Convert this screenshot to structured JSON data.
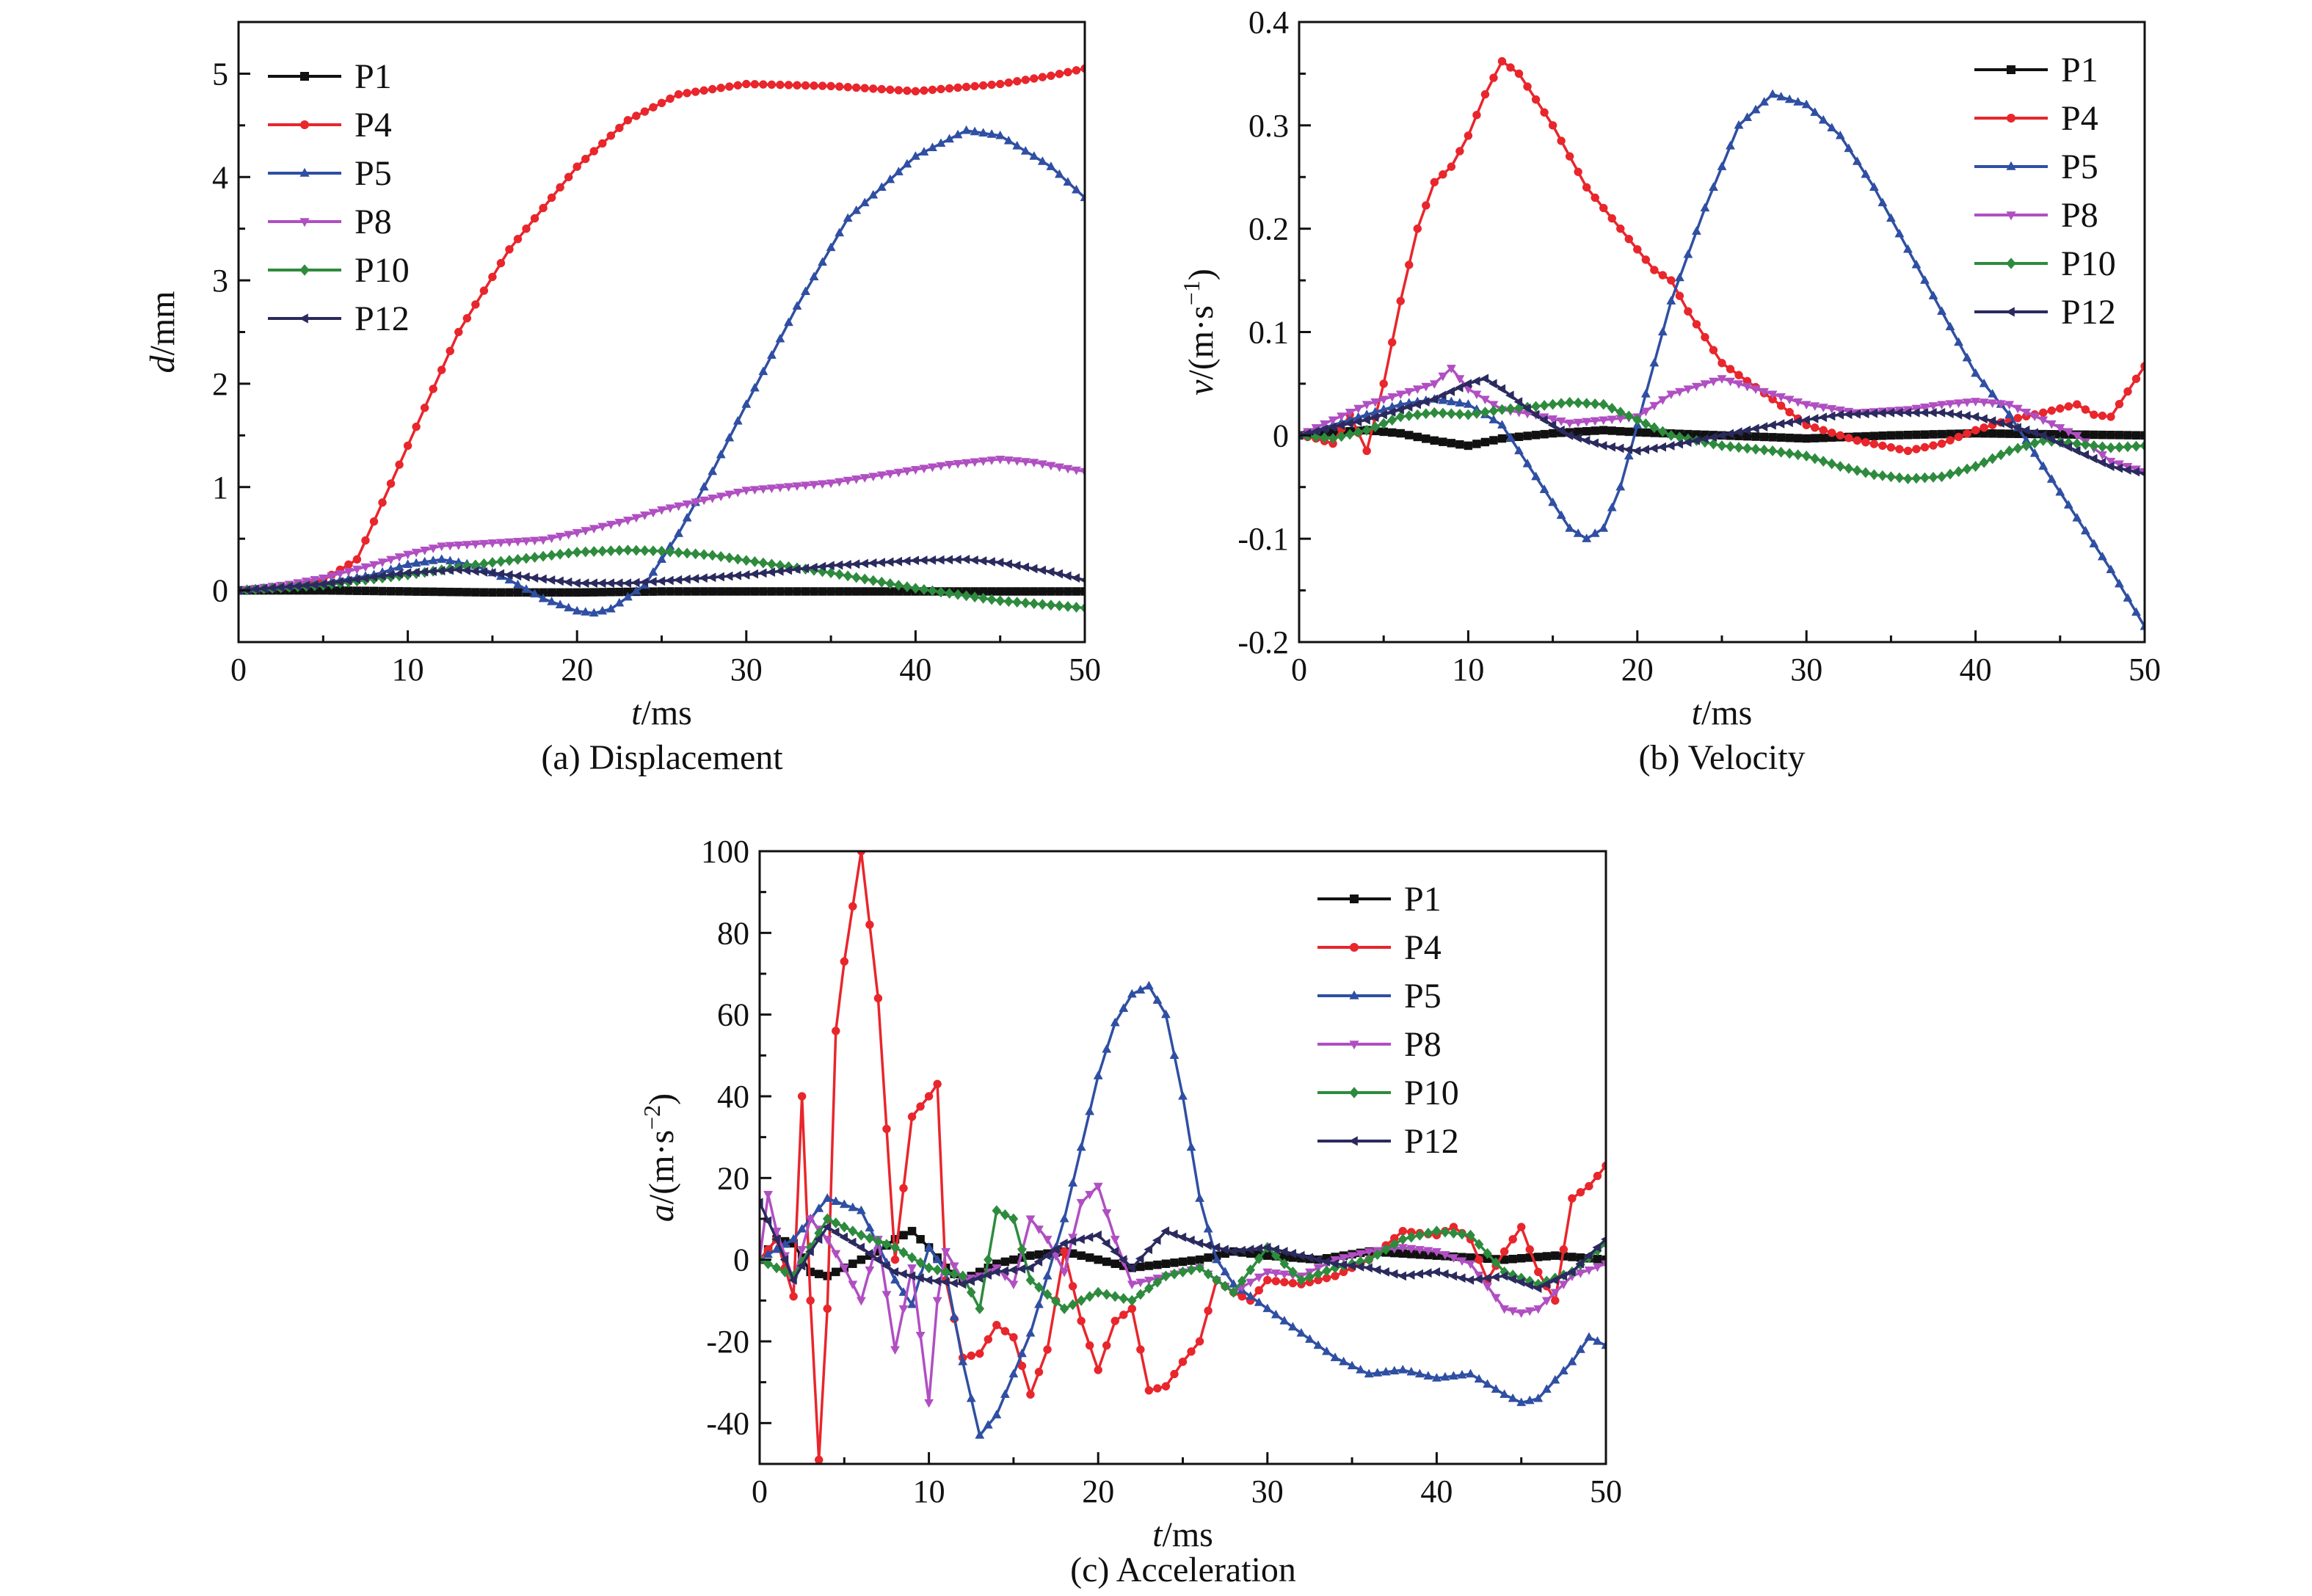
{
  "figure": {
    "panels": [
      "(a) Displacement",
      "(b) Velocity",
      "(c) Acceleration"
    ]
  },
  "series_styles": {
    "P1": {
      "color": "#111111",
      "marker": "square"
    },
    "P4": {
      "color": "#e8262c",
      "marker": "circle"
    },
    "P5": {
      "color": "#2f4fa3",
      "marker": "triangle-up"
    },
    "P8": {
      "color": "#b04fc2",
      "marker": "triangle-down"
    },
    "P10": {
      "color": "#2e8b3e",
      "marker": "diamond"
    },
    "P12": {
      "color": "#2b2a5e",
      "marker": "triangle-left"
    }
  },
  "chart_data": [
    {
      "type": "line",
      "caption": "(a) Displacement",
      "xlabel_italic": "t",
      "xlabel_unit": "/ms",
      "ylabel_italic": "d",
      "ylabel_unit": "/mm",
      "xlim": [
        0,
        50
      ],
      "ylim": [
        -0.5,
        5.5
      ],
      "xticks": [
        0,
        10,
        20,
        30,
        40,
        50
      ],
      "yticks": [
        0,
        1,
        2,
        3,
        4,
        5
      ],
      "legend": "top-left",
      "series": [
        {
          "name": "P1",
          "x": [
            0,
            5,
            10,
            15,
            20,
            25,
            30,
            35,
            40,
            45,
            50
          ],
          "y": [
            0,
            0,
            -0.01,
            -0.02,
            -0.02,
            -0.01,
            -0.01,
            -0.01,
            -0.01,
            -0.01,
            -0.01
          ]
        },
        {
          "name": "P4",
          "x": [
            0,
            3,
            5,
            7,
            10,
            13,
            16,
            20,
            23,
            26,
            30,
            35,
            38,
            40,
            45,
            48,
            50
          ],
          "y": [
            0,
            0.03,
            0.1,
            0.3,
            1.4,
            2.5,
            3.3,
            4.1,
            4.55,
            4.8,
            4.9,
            4.88,
            4.85,
            4.83,
            4.9,
            4.98,
            5.05
          ]
        },
        {
          "name": "P5",
          "x": [
            0,
            5,
            8,
            10,
            12,
            14,
            16,
            18,
            20,
            21,
            22,
            24,
            26,
            28,
            30,
            33,
            36,
            40,
            43,
            45,
            48,
            50
          ],
          "y": [
            0,
            0.07,
            0.15,
            0.25,
            0.3,
            0.24,
            0.1,
            -0.08,
            -0.2,
            -0.22,
            -0.18,
            0.05,
            0.55,
            1.15,
            1.8,
            2.75,
            3.6,
            4.2,
            4.45,
            4.4,
            4.1,
            3.8
          ]
        },
        {
          "name": "P8",
          "x": [
            0,
            3,
            5,
            8,
            10,
            12,
            15,
            18,
            20,
            23,
            25,
            30,
            35,
            40,
            42,
            45,
            47,
            50
          ],
          "y": [
            0,
            0.06,
            0.12,
            0.25,
            0.35,
            0.43,
            0.46,
            0.49,
            0.56,
            0.68,
            0.78,
            0.97,
            1.04,
            1.17,
            1.22,
            1.27,
            1.24,
            1.15
          ]
        },
        {
          "name": "P10",
          "x": [
            0,
            5,
            10,
            15,
            20,
            23,
            25,
            28,
            30,
            35,
            40,
            45,
            50
          ],
          "y": [
            0,
            0.05,
            0.15,
            0.27,
            0.37,
            0.39,
            0.38,
            0.34,
            0.29,
            0.17,
            0.02,
            -0.1,
            -0.17
          ]
        },
        {
          "name": "P12",
          "x": [
            0,
            5,
            8,
            10,
            13,
            15,
            18,
            20,
            23,
            25,
            30,
            35,
            40,
            43,
            45,
            48,
            50
          ],
          "y": [
            0,
            0.06,
            0.13,
            0.17,
            0.2,
            0.17,
            0.11,
            0.07,
            0.07,
            0.09,
            0.15,
            0.24,
            0.29,
            0.3,
            0.27,
            0.18,
            0.1
          ]
        }
      ]
    },
    {
      "type": "line",
      "caption": "(b) Velocity",
      "xlabel_italic": "t",
      "xlabel_unit": "/ms",
      "ylabel_italic": "v",
      "ylabel_unit": "/(m·s",
      "ylabel_sup": "−1",
      "ylabel_close": ")",
      "xlim": [
        0,
        50
      ],
      "ylim": [
        -0.2,
        0.4
      ],
      "xticks": [
        0,
        10,
        20,
        30,
        40,
        50
      ],
      "yticks": [
        -0.2,
        -0.1,
        0,
        0.1,
        0.2,
        0.3,
        0.4
      ],
      "legend": "top-right",
      "series": [
        {
          "name": "P1",
          "x": [
            0,
            2,
            4,
            6,
            8,
            10,
            12,
            15,
            18,
            20,
            25,
            30,
            35,
            40,
            45,
            50
          ],
          "y": [
            0,
            0.003,
            0.005,
            0.002,
            -0.005,
            -0.01,
            -0.003,
            0.002,
            0.005,
            0.003,
            0,
            -0.003,
            0,
            0.002,
            0.001,
            0
          ]
        },
        {
          "name": "P4",
          "x": [
            0,
            1,
            2,
            3,
            4,
            5,
            6,
            7,
            8,
            9,
            10,
            11,
            12,
            13,
            14,
            15,
            16,
            17,
            18,
            19,
            20,
            21,
            22,
            23,
            25,
            28,
            30,
            33,
            36,
            38,
            40,
            42,
            44,
            46,
            47,
            48,
            50
          ],
          "y": [
            0,
            -0.003,
            -0.008,
            0.02,
            -0.015,
            0.05,
            0.13,
            0.2,
            0.245,
            0.26,
            0.29,
            0.33,
            0.362,
            0.35,
            0.325,
            0.3,
            0.27,
            0.24,
            0.22,
            0.2,
            0.18,
            0.16,
            0.15,
            0.12,
            0.07,
            0.035,
            0.01,
            -0.005,
            -0.015,
            -0.008,
            0.005,
            0.015,
            0.022,
            0.03,
            0.02,
            0.018,
            0.067
          ]
        },
        {
          "name": "P5",
          "x": [
            0,
            2,
            4,
            6,
            8,
            10,
            12,
            14,
            16,
            17,
            18,
            19,
            20,
            21,
            22,
            24,
            26,
            28,
            30,
            32,
            34,
            36,
            38,
            40,
            42,
            44,
            46,
            48,
            50
          ],
          "y": [
            0,
            0.01,
            0.02,
            0.03,
            0.035,
            0.03,
            0.01,
            -0.04,
            -0.09,
            -0.1,
            -0.09,
            -0.05,
            0.01,
            0.07,
            0.13,
            0.22,
            0.3,
            0.33,
            0.32,
            0.29,
            0.24,
            0.18,
            0.12,
            0.06,
            0.02,
            -0.03,
            -0.08,
            -0.13,
            -0.185
          ]
        },
        {
          "name": "P8",
          "x": [
            0,
            2,
            4,
            6,
            8,
            9,
            10,
            11,
            12,
            14,
            16,
            18,
            20,
            22,
            24,
            25,
            27,
            30,
            33,
            36,
            38,
            40,
            42,
            44,
            46,
            48,
            50
          ],
          "y": [
            0,
            0.015,
            0.03,
            0.04,
            0.05,
            0.065,
            0.045,
            0.035,
            0.025,
            0.02,
            0.012,
            0.015,
            0.018,
            0.04,
            0.05,
            0.055,
            0.045,
            0.03,
            0.022,
            0.025,
            0.03,
            0.033,
            0.03,
            0.015,
            0.0,
            -0.025,
            -0.035
          ]
        },
        {
          "name": "P10",
          "x": [
            0,
            2,
            4,
            6,
            8,
            10,
            12,
            14,
            16,
            18,
            20,
            22,
            25,
            28,
            30,
            32,
            34,
            36,
            38,
            40,
            42,
            44,
            46,
            48,
            50
          ],
          "y": [
            0,
            -0.003,
            0.005,
            0.018,
            0.022,
            0.02,
            0.025,
            0.028,
            0.032,
            0.03,
            0.015,
            0.0,
            -0.01,
            -0.015,
            -0.02,
            -0.03,
            -0.038,
            -0.042,
            -0.04,
            -0.03,
            -0.015,
            -0.005,
            -0.008,
            -0.012,
            -0.01
          ]
        },
        {
          "name": "P12",
          "x": [
            0,
            2,
            4,
            6,
            8,
            10,
            11,
            12,
            14,
            16,
            18,
            20,
            22,
            25,
            28,
            30,
            32,
            35,
            38,
            40,
            42,
            44,
            46,
            48,
            50
          ],
          "y": [
            0,
            0.008,
            0.015,
            0.025,
            0.035,
            0.05,
            0.055,
            0.045,
            0.02,
            0.0,
            -0.01,
            -0.015,
            -0.01,
            0.0,
            0.01,
            0.015,
            0.02,
            0.022,
            0.022,
            0.018,
            0.01,
            0.0,
            -0.015,
            -0.03,
            -0.037
          ]
        }
      ]
    },
    {
      "type": "line",
      "caption": "(c) Acceleration",
      "xlabel_italic": "t",
      "xlabel_unit": "/ms",
      "ylabel_italic": "a",
      "ylabel_unit": "/(m·s",
      "ylabel_sup": "−2",
      "ylabel_close": ")",
      "xlim": [
        0,
        50
      ],
      "ylim": [
        -50,
        100
      ],
      "xticks": [
        0,
        10,
        20,
        30,
        40,
        50
      ],
      "yticks": [
        -40,
        -20,
        0,
        20,
        40,
        60,
        80,
        100
      ],
      "legend": "top-right",
      "series": [
        {
          "name": "P1",
          "x": [
            0,
            1,
            2,
            3,
            4,
            5,
            6,
            7,
            8,
            9,
            10,
            11,
            12,
            14,
            16,
            18,
            20,
            22,
            24,
            26,
            28,
            30,
            33,
            36,
            40,
            44,
            47,
            50
          ],
          "y": [
            0,
            5,
            4,
            -3,
            -4,
            -2,
            0,
            2,
            5,
            7,
            3,
            -2,
            -5,
            -1,
            1,
            2,
            0,
            -2,
            -1,
            0,
            2,
            1,
            0,
            2,
            1,
            0,
            1,
            0
          ]
        },
        {
          "name": "P4",
          "x": [
            0,
            1,
            2,
            2.5,
            3,
            3.5,
            4,
            4.5,
            5,
            6,
            7,
            8,
            9,
            10,
            10.5,
            11,
            12,
            13,
            14,
            15,
            16,
            17,
            18,
            19,
            20,
            21,
            22,
            23,
            24,
            25,
            26,
            27,
            28,
            29,
            30,
            32,
            34,
            36,
            38,
            40,
            41,
            42,
            43,
            44,
            45,
            46,
            47,
            48,
            49,
            50
          ],
          "y": [
            0,
            5,
            -9,
            40,
            -10,
            -49,
            -12,
            56,
            73,
            100,
            64,
            0,
            35,
            40,
            43,
            -5,
            -24,
            -23,
            -16,
            -19,
            -33,
            -22,
            2,
            -15,
            -27,
            -15,
            -12,
            -32,
            -31,
            -25,
            -20,
            -5,
            -8,
            -10,
            -5,
            -6,
            -4,
            0,
            7,
            6,
            8,
            5,
            -5,
            2,
            8,
            -3,
            -10,
            15,
            18,
            23
          ]
        },
        {
          "name": "P5",
          "x": [
            0,
            2,
            4,
            6,
            8,
            9,
            10,
            11,
            12,
            13,
            14,
            16,
            18,
            20,
            21,
            22,
            23,
            24,
            25,
            26,
            27,
            28,
            30,
            32,
            34,
            36,
            38,
            40,
            42,
            44,
            45,
            46,
            48,
            49,
            50
          ],
          "y": [
            0,
            5,
            15,
            12,
            -5,
            -11,
            3,
            -3,
            -25,
            -43,
            -38,
            -18,
            10,
            45,
            58,
            65,
            67,
            60,
            40,
            15,
            0,
            -6,
            -12,
            -18,
            -24,
            -28,
            -27,
            -29,
            -28,
            -33,
            -35,
            -34,
            -25,
            -19,
            -21
          ]
        },
        {
          "name": "P8",
          "x": [
            0,
            0.5,
            1,
            2,
            3,
            4,
            5,
            6,
            7,
            8,
            9,
            10,
            10.5,
            11,
            12,
            13,
            14,
            15,
            16,
            17,
            18,
            19,
            20,
            21,
            22,
            24,
            26,
            28,
            30,
            32,
            34,
            36,
            38,
            40,
            42,
            44,
            45,
            46,
            48,
            50
          ],
          "y": [
            0,
            16,
            7,
            -5,
            10,
            5,
            -2,
            -10,
            5,
            -22,
            -2,
            -35,
            -10,
            2,
            -5,
            -4,
            -2,
            -6,
            10,
            5,
            -3,
            14,
            18,
            5,
            -6,
            -4,
            -2,
            -8,
            -3,
            -4,
            0,
            2,
            3,
            2,
            -1,
            -12,
            -13,
            -12,
            -4,
            -1
          ]
        },
        {
          "name": "P10",
          "x": [
            0,
            2,
            4,
            6,
            8,
            10,
            12,
            13,
            14,
            15,
            16,
            18,
            20,
            22,
            24,
            26,
            28,
            30,
            32,
            34,
            36,
            38,
            40,
            42,
            44,
            46,
            48,
            50
          ],
          "y": [
            0,
            -4,
            10,
            6,
            3,
            -2,
            -4,
            -12,
            12,
            10,
            -5,
            -12,
            -8,
            -10,
            -4,
            -2,
            -8,
            3,
            -5,
            -2,
            0,
            5,
            7,
            6,
            -3,
            -6,
            -3,
            4
          ]
        },
        {
          "name": "P12",
          "x": [
            0,
            1,
            2,
            3,
            4,
            6,
            8,
            10,
            12,
            14,
            16,
            18,
            20,
            22,
            24,
            26,
            28,
            30,
            32,
            34,
            36,
            38,
            40,
            42,
            44,
            46,
            48,
            50
          ],
          "y": [
            14,
            5,
            -5,
            2,
            8,
            3,
            -3,
            -5,
            -6,
            -3,
            -2,
            4,
            6,
            -2,
            7,
            4,
            2,
            3,
            1,
            -1,
            -2,
            -4,
            -3,
            -5,
            -4,
            -7,
            -3,
            5
          ]
        }
      ]
    }
  ]
}
